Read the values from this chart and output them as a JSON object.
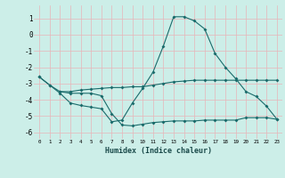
{
  "xlabel": "Humidex (Indice chaleur)",
  "xlim": [
    -0.5,
    23.5
  ],
  "ylim": [
    -6.4,
    1.8
  ],
  "yticks": [
    1,
    0,
    -1,
    -2,
    -3,
    -4,
    -5,
    -6
  ],
  "xticks": [
    0,
    1,
    2,
    3,
    4,
    5,
    6,
    7,
    8,
    9,
    10,
    11,
    12,
    13,
    14,
    15,
    16,
    17,
    18,
    19,
    20,
    21,
    22,
    23
  ],
  "bg_color": "#cceee8",
  "grid_color": "#e8b4b8",
  "line_color": "#1a6b6b",
  "line1_x": [
    0,
    1,
    2,
    3,
    4,
    5,
    6,
    7,
    8,
    9,
    10,
    11,
    12,
    13,
    14,
    15,
    16,
    17,
    18,
    19,
    20,
    21,
    22,
    23
  ],
  "line1_y": [
    -2.6,
    -3.1,
    -3.5,
    -3.5,
    -3.4,
    -3.35,
    -3.3,
    -3.25,
    -3.25,
    -3.2,
    -3.2,
    -3.1,
    -3.0,
    -2.9,
    -2.85,
    -2.8,
    -2.8,
    -2.8,
    -2.8,
    -2.8,
    -2.8,
    -2.8,
    -2.8,
    -2.8
  ],
  "line2_x": [
    0,
    1,
    2,
    3,
    4,
    5,
    6,
    7,
    8,
    9,
    10,
    11,
    12,
    13,
    14,
    15,
    16,
    17,
    18,
    19,
    20,
    21,
    22,
    23
  ],
  "line2_y": [
    -2.6,
    -3.1,
    -3.6,
    -4.2,
    -4.35,
    -4.45,
    -4.55,
    -5.35,
    -5.25,
    -4.2,
    -3.3,
    -2.3,
    -0.7,
    1.1,
    1.1,
    0.85,
    0.35,
    -1.15,
    -2.0,
    -2.7,
    -3.5,
    -3.8,
    -4.4,
    -5.2
  ],
  "line3_x": [
    2,
    3,
    4,
    5,
    6,
    7,
    8,
    9,
    10,
    11,
    12,
    13,
    14,
    15,
    16,
    17,
    18,
    19,
    20,
    21,
    22,
    23
  ],
  "line3_y": [
    -3.5,
    -3.6,
    -3.6,
    -3.6,
    -3.75,
    -4.85,
    -5.55,
    -5.6,
    -5.5,
    -5.4,
    -5.35,
    -5.3,
    -5.3,
    -5.3,
    -5.25,
    -5.25,
    -5.25,
    -5.25,
    -5.1,
    -5.1,
    -5.1,
    -5.2
  ]
}
